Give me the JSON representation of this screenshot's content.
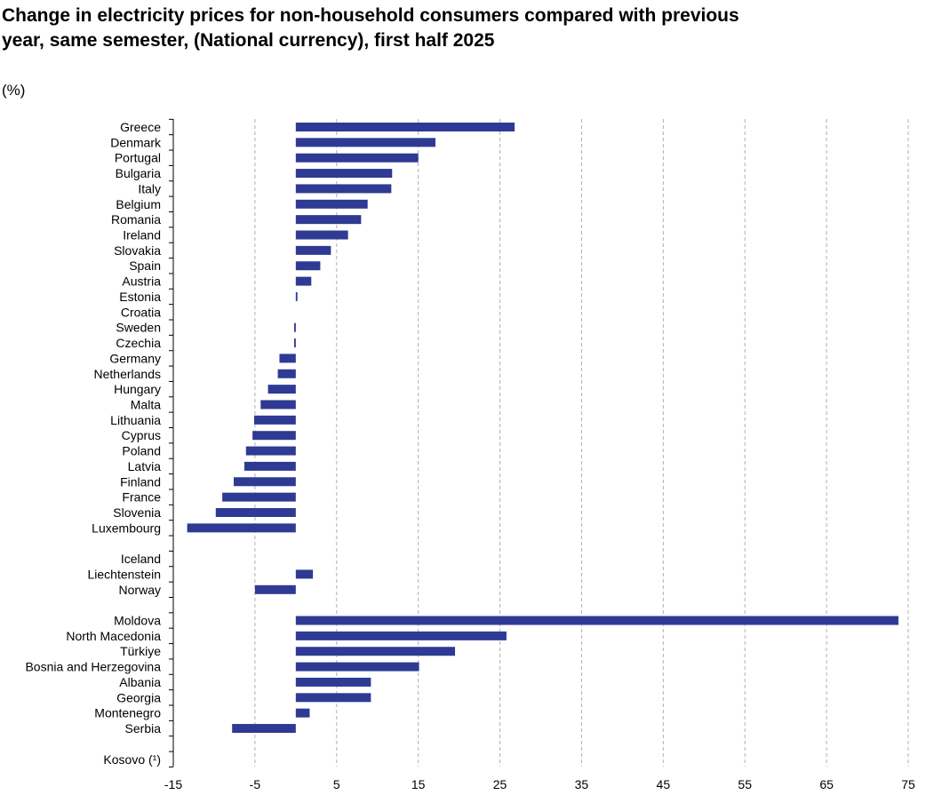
{
  "chart_data": {
    "type": "bar",
    "orientation": "horizontal",
    "title": "Change in electricity prices for non-household consumers compared with previous year, same semester, (National currency), first half 2025",
    "unit_label": "(%)",
    "xlim": [
      -15,
      75
    ],
    "xticks": [
      -15,
      -5,
      5,
      15,
      25,
      35,
      45,
      55,
      65,
      75
    ],
    "grid": "vertical dashed",
    "bar_color": "#2e3a94",
    "categories": [
      "Greece",
      "Denmark",
      "Portugal",
      "Bulgaria",
      "Italy",
      "Belgium",
      "Romania",
      "Ireland",
      "Slovakia",
      "Spain",
      "Austria",
      "Estonia",
      "Croatia",
      "Sweden",
      "Czechia",
      "Germany",
      "Netherlands",
      "Hungary",
      "Malta",
      "Lithuania",
      "Cyprus",
      "Poland",
      "Latvia",
      "Finland",
      "France",
      "Slovenia",
      "Luxembourg",
      "",
      "Iceland",
      "Liechtenstein",
      "Norway",
      "",
      "Moldova",
      "North Macedonia",
      "Türkiye",
      "Bosnia and Herzegovina",
      "Albania",
      "Georgia",
      "Montenegro",
      "Serbia",
      "",
      "Kosovo (¹)"
    ],
    "values": [
      26.8,
      17.1,
      15.0,
      11.8,
      11.7,
      8.8,
      8.0,
      6.4,
      4.3,
      3.0,
      1.9,
      0.2,
      null,
      -0.2,
      -0.2,
      -2.0,
      -2.2,
      -3.4,
      -4.3,
      -5.1,
      -5.3,
      -6.1,
      -6.3,
      -7.6,
      -9.0,
      -9.8,
      -13.3,
      null,
      null,
      2.1,
      -5.0,
      null,
      73.8,
      25.8,
      19.5,
      15.1,
      9.2,
      9.2,
      1.7,
      -7.8,
      null,
      null
    ]
  }
}
